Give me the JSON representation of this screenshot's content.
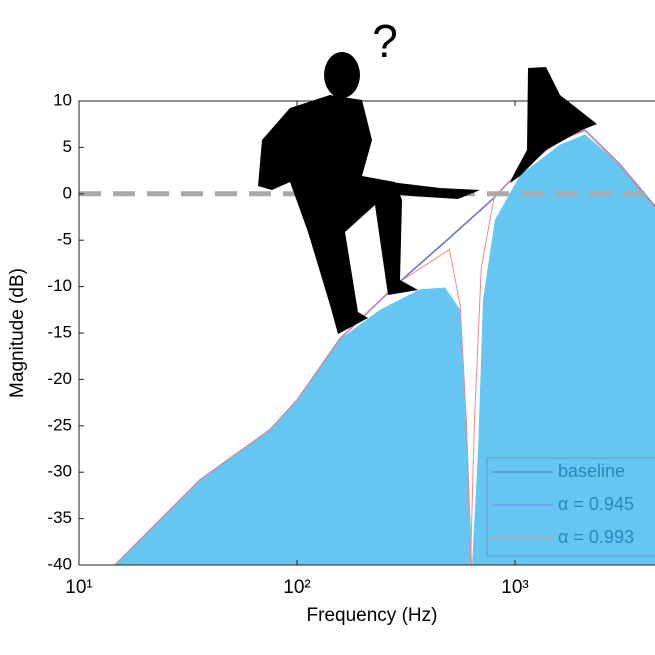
{
  "chart_data": {
    "type": "line",
    "annotation": "?",
    "xlabel": "Frequency (Hz)",
    "ylabel": "Magnitude (dB)",
    "xscale": "log",
    "xlim": [
      10,
      4385
    ],
    "ylim": [
      -40,
      10
    ],
    "xticks": [
      {
        "value": 10,
        "label": "10¹"
      },
      {
        "value": 100,
        "label": "10²"
      },
      {
        "value": 1000,
        "label": "10³"
      }
    ],
    "yticks": [
      10,
      5,
      0,
      -5,
      -10,
      -15,
      -20,
      -25,
      -30,
      -35,
      -40
    ],
    "hline": 0,
    "legend": "lower right",
    "area": {
      "color": "#66c6f2",
      "x": [
        14.6,
        35.9,
        75.2,
        100,
        157,
        240,
        366,
        478,
        560,
        608,
        635,
        677,
        713,
        809,
        1054,
        1608,
        2095,
        3033,
        4385
      ],
      "values": [
        -40,
        -30.8,
        -25.4,
        -22.2,
        -15.7,
        -12.5,
        -10.3,
        -10.1,
        -12.5,
        -27.6,
        -40,
        -27.6,
        -11.4,
        -2.8,
        2.0,
        5.3,
        6.4,
        3.1,
        -1.2
      ]
    },
    "series": [
      {
        "name": "baseline",
        "color": "#5a6fb0",
        "x": [
          14.6,
          35.9,
          75.2,
          100,
          157,
          300,
          500,
          800,
          1054,
          1608,
          2095,
          3033,
          4385
        ],
        "values": [
          -40,
          -30.8,
          -25.4,
          -22.2,
          -15.7,
          -9.4,
          -4.8,
          -0.5,
          2.5,
          5.8,
          6.8,
          3.0,
          -1.5
        ]
      },
      {
        "name": "α = 0.945",
        "color": "#8a7fe0",
        "x": [
          14.6,
          35.9,
          75.2,
          100,
          157,
          300,
          500,
          800,
          1054,
          1608,
          2095,
          3033,
          4385
        ],
        "values": [
          -40,
          -30.8,
          -25.4,
          -22.2,
          -15.6,
          -9.3,
          -4.7,
          -0.4,
          2.6,
          5.9,
          6.9,
          3.2,
          -1.3
        ]
      },
      {
        "name": "α = 0.993",
        "color": "#f08a8a",
        "x": [
          14.6,
          35.9,
          75.2,
          100,
          157,
          300,
          500,
          560,
          600,
          625,
          650,
          700,
          800,
          1054,
          1608,
          2095,
          3033,
          4385
        ],
        "values": [
          -40,
          -30.8,
          -25.4,
          -22.2,
          -15.7,
          -9.4,
          -6,
          -12,
          -25,
          -40,
          -25,
          -8,
          -0.5,
          2.5,
          5.8,
          6.8,
          3.0,
          -1.5
        ]
      }
    ]
  }
}
